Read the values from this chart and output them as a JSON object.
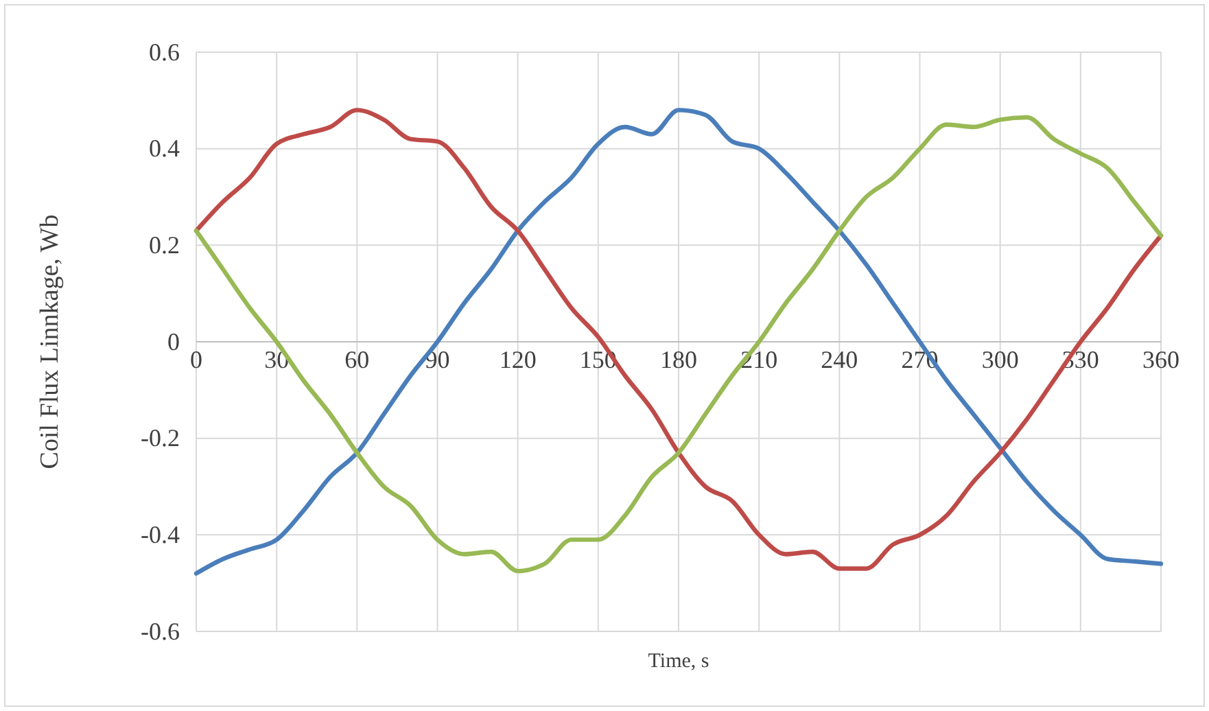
{
  "chart_data": {
    "type": "line",
    "xlabel": "Time, s",
    "ylabel": "Coil Flux Linnkage, Wb",
    "x": [
      0,
      10,
      20,
      30,
      40,
      50,
      60,
      70,
      80,
      90,
      100,
      110,
      120,
      130,
      140,
      150,
      160,
      170,
      180,
      190,
      200,
      210,
      220,
      230,
      240,
      250,
      260,
      270,
      280,
      290,
      300,
      310,
      320,
      330,
      340,
      350,
      360
    ],
    "series": [
      {
        "color": "#4a7ebb",
        "values": [
          -0.48,
          -0.45,
          -0.43,
          -0.41,
          -0.35,
          -0.28,
          -0.23,
          -0.15,
          -0.07,
          0,
          0.08,
          0.15,
          0.23,
          0.29,
          0.34,
          0.41,
          0.445,
          0.43,
          0.48,
          0.47,
          0.415,
          0.4,
          0.35,
          0.29,
          0.23,
          0.16,
          0.08,
          0,
          -0.08,
          -0.15,
          -0.22,
          -0.29,
          -0.35,
          -0.4,
          -0.45,
          -0.455,
          -0.46
        ]
      },
      {
        "color": "#be4b48",
        "values": [
          0.23,
          0.29,
          0.34,
          0.41,
          0.43,
          0.445,
          0.48,
          0.46,
          0.42,
          0.415,
          0.36,
          0.28,
          0.23,
          0.15,
          0.07,
          0.01,
          -0.07,
          -0.14,
          -0.23,
          -0.3,
          -0.33,
          -0.4,
          -0.44,
          -0.435,
          -0.47,
          -0.47,
          -0.42,
          -0.4,
          -0.36,
          -0.29,
          -0.23,
          -0.16,
          -0.08,
          0,
          0.07,
          0.15,
          0.22
        ]
      },
      {
        "color": "#98b954",
        "values": [
          0.23,
          0.15,
          0.07,
          0,
          -0.08,
          -0.15,
          -0.23,
          -0.3,
          -0.34,
          -0.41,
          -0.44,
          -0.435,
          -0.475,
          -0.46,
          -0.41,
          -0.41,
          -0.36,
          -0.28,
          -0.23,
          -0.15,
          -0.07,
          0,
          0.08,
          0.15,
          0.23,
          0.3,
          0.34,
          0.4,
          0.45,
          0.445,
          0.46,
          0.465,
          0.42,
          0.39,
          0.36,
          0.29,
          0.22
        ]
      }
    ],
    "xlim": [
      0,
      360
    ],
    "xticks": [
      0,
      30,
      60,
      90,
      120,
      150,
      180,
      210,
      240,
      270,
      300,
      330,
      360
    ],
    "ylim": [
      -0.6,
      0.6
    ],
    "yticks": [
      -0.6,
      -0.4,
      -0.2,
      0,
      0.2,
      0.4,
      0.6
    ],
    "grid": true,
    "line_style": "solid",
    "marker": "none"
  }
}
